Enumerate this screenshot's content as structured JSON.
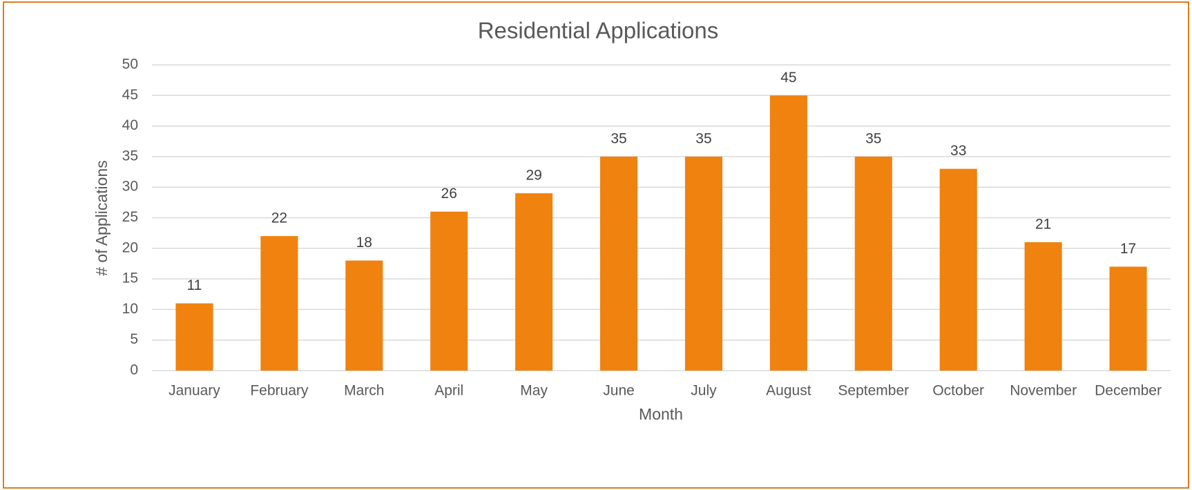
{
  "chart_data": {
    "type": "bar",
    "title": "Residential Applications",
    "x_label": "Month",
    "y_label": "# of Applications",
    "categories": [
      "January",
      "February",
      "March",
      "April",
      "May",
      "June",
      "July",
      "August",
      "September",
      "October",
      "November",
      "December"
    ],
    "values": [
      11,
      22,
      18,
      26,
      29,
      35,
      35,
      45,
      35,
      33,
      21,
      17
    ],
    "color": "#f0820f",
    "ylim": [
      0,
      50
    ],
    "yticks": [
      0,
      5,
      10,
      15,
      20,
      25,
      30,
      35,
      40,
      45,
      50
    ],
    "grid": true
  }
}
